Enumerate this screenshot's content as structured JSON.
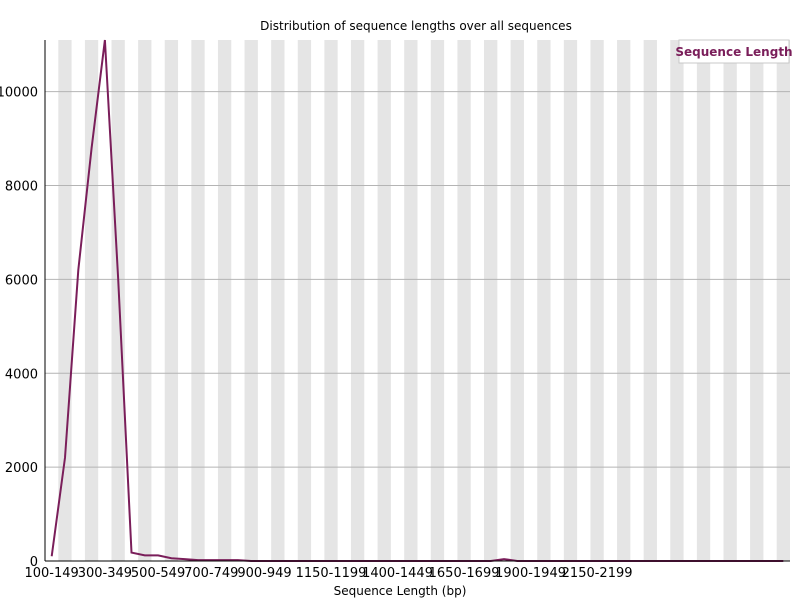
{
  "chart_data": {
    "type": "line",
    "title": "Distribution of sequence lengths over all sequences",
    "xlabel": "Sequence Length (bp)",
    "ylabel": "",
    "ylim": [
      0,
      11100
    ],
    "yticks": [
      0,
      2000,
      4000,
      6000,
      8000,
      10000
    ],
    "grid": true,
    "legend": "top-right",
    "colors": {
      "line": "#7a1e5a",
      "band": "#e5e5e5",
      "grid": "#b4b4b4"
    },
    "categories": [
      "100-149",
      "150-199",
      "200-249",
      "250-299",
      "300-349",
      "350-399",
      "400-449",
      "450-499",
      "500-549",
      "550-599",
      "600-649",
      "650-699",
      "700-749",
      "750-799",
      "800-849",
      "850-899",
      "900-949",
      "950-999",
      "1000-1049",
      "1050-1099",
      "1100-1149",
      "1150-1199",
      "1200-1249",
      "1250-1299",
      "1300-1349",
      "1350-1399",
      "1400-1449",
      "1450-1499",
      "1500-1549",
      "1550-1599",
      "1600-1649",
      "1650-1699",
      "1700-1749",
      "1750-1799",
      "1800-1849",
      "1850-1899",
      "1900-1949",
      "1950-1999",
      "2000-2049",
      "2050-2099",
      "2100-2149",
      "2150-2199",
      "2200-2249",
      "2250-2299",
      "2300-2349",
      "2350-2399",
      "2400-2449",
      "2450-2499",
      "2500-2549",
      "2550-2599",
      "2600-2649",
      "2650-2699",
      "2700-2749",
      "2750-2799",
      "2800-2849",
      "2850-2899"
    ],
    "xtick_labels": [
      "100-149",
      "300-349",
      "500-549",
      "700-749",
      "900-949",
      "1150-1199",
      "1400-1449",
      "1650-1699",
      "1900-1949",
      "2150-2199"
    ],
    "series": [
      {
        "name": "Sequence Length",
        "values": [
          100,
          2200,
          6200,
          8800,
          11100,
          6000,
          180,
          120,
          120,
          60,
          40,
          20,
          20,
          20,
          20,
          0,
          0,
          0,
          0,
          0,
          0,
          0,
          0,
          0,
          0,
          0,
          0,
          0,
          0,
          0,
          0,
          0,
          0,
          0,
          40,
          0,
          0,
          0,
          0,
          0,
          0,
          0,
          0,
          0,
          0,
          0,
          0,
          0,
          0,
          0,
          0,
          0,
          0,
          0,
          0,
          0
        ]
      }
    ]
  }
}
